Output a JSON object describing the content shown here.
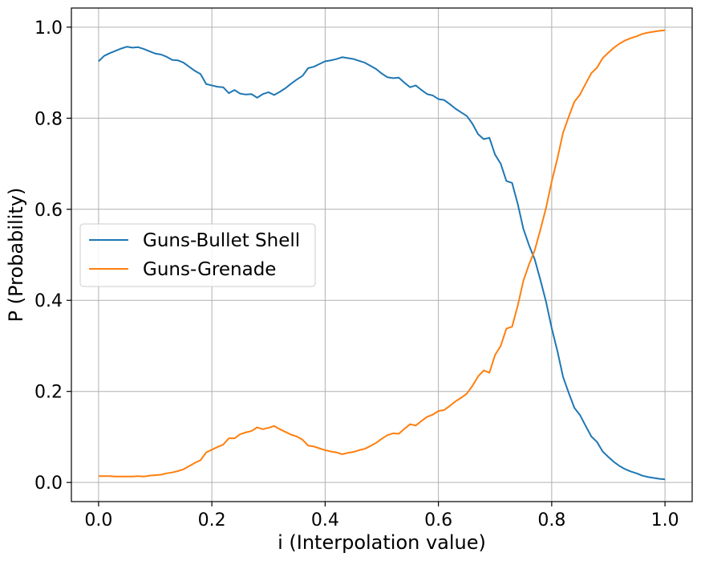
{
  "chart_data": {
    "type": "line",
    "title": "",
    "xlabel": "i (Interpolation value)",
    "ylabel": "P (Probability)",
    "xlim": [
      -0.048,
      1.048
    ],
    "ylim": [
      -0.042,
      1.042
    ],
    "xticks": [
      0.0,
      0.2,
      0.4,
      0.6,
      0.8,
      1.0
    ],
    "xtick_labels": [
      "0.0",
      "0.2",
      "0.4",
      "0.6",
      "0.8",
      "1.0"
    ],
    "yticks": [
      0.0,
      0.2,
      0.4,
      0.6,
      0.8,
      1.0
    ],
    "ytick_labels": [
      "0.0",
      "0.2",
      "0.4",
      "0.6",
      "0.8",
      "1.0"
    ],
    "grid": true,
    "legend_position": "center-left",
    "x": [
      0.0,
      0.01,
      0.02,
      0.03,
      0.04,
      0.05,
      0.06,
      0.07,
      0.08,
      0.09,
      0.1,
      0.11,
      0.12,
      0.13,
      0.14,
      0.15,
      0.16,
      0.17,
      0.18,
      0.19,
      0.2,
      0.21,
      0.22,
      0.23,
      0.24,
      0.25,
      0.26,
      0.27,
      0.28,
      0.29,
      0.3,
      0.31,
      0.32,
      0.33,
      0.34,
      0.35,
      0.36,
      0.37,
      0.38,
      0.39,
      0.4,
      0.41,
      0.42,
      0.43,
      0.44,
      0.45,
      0.46,
      0.47,
      0.48,
      0.49,
      0.5,
      0.51,
      0.52,
      0.53,
      0.54,
      0.55,
      0.56,
      0.57,
      0.58,
      0.59,
      0.6,
      0.61,
      0.62,
      0.63,
      0.64,
      0.65,
      0.66,
      0.67,
      0.68,
      0.69,
      0.7,
      0.71,
      0.72,
      0.73,
      0.74,
      0.75,
      0.76,
      0.77,
      0.78,
      0.79,
      0.8,
      0.81,
      0.82,
      0.83,
      0.84,
      0.85,
      0.86,
      0.87,
      0.88,
      0.89,
      0.9,
      0.91,
      0.92,
      0.93,
      0.94,
      0.95,
      0.96,
      0.97,
      0.98,
      0.99,
      1.0
    ],
    "series": [
      {
        "name": "Guns-Bullet Shell",
        "color": "#1f77b4",
        "values": [
          0.925,
          0.937,
          0.943,
          0.948,
          0.953,
          0.957,
          0.955,
          0.956,
          0.952,
          0.947,
          0.942,
          0.94,
          0.935,
          0.928,
          0.927,
          0.922,
          0.913,
          0.904,
          0.897,
          0.875,
          0.872,
          0.869,
          0.868,
          0.855,
          0.862,
          0.854,
          0.852,
          0.853,
          0.845,
          0.853,
          0.857,
          0.851,
          0.858,
          0.866,
          0.876,
          0.885,
          0.893,
          0.91,
          0.913,
          0.919,
          0.925,
          0.927,
          0.93,
          0.934,
          0.932,
          0.93,
          0.926,
          0.922,
          0.915,
          0.908,
          0.898,
          0.89,
          0.888,
          0.889,
          0.878,
          0.868,
          0.872,
          0.862,
          0.853,
          0.85,
          0.842,
          0.84,
          0.831,
          0.821,
          0.813,
          0.805,
          0.788,
          0.765,
          0.754,
          0.757,
          0.72,
          0.7,
          0.662,
          0.658,
          0.612,
          0.557,
          0.521,
          0.49,
          0.445,
          0.397,
          0.339,
          0.289,
          0.232,
          0.197,
          0.164,
          0.148,
          0.124,
          0.101,
          0.089,
          0.068,
          0.056,
          0.045,
          0.036,
          0.029,
          0.024,
          0.02,
          0.015,
          0.012,
          0.01,
          0.008,
          0.007
        ]
      },
      {
        "name": "Guns-Grenade",
        "color": "#ff7f0e",
        "values": [
          0.014,
          0.014,
          0.014,
          0.013,
          0.013,
          0.013,
          0.013,
          0.014,
          0.013,
          0.015,
          0.016,
          0.017,
          0.02,
          0.022,
          0.025,
          0.029,
          0.036,
          0.043,
          0.049,
          0.066,
          0.072,
          0.078,
          0.083,
          0.097,
          0.097,
          0.106,
          0.11,
          0.113,
          0.121,
          0.117,
          0.12,
          0.124,
          0.117,
          0.111,
          0.105,
          0.101,
          0.094,
          0.081,
          0.079,
          0.075,
          0.071,
          0.068,
          0.066,
          0.062,
          0.065,
          0.067,
          0.071,
          0.074,
          0.08,
          0.087,
          0.096,
          0.104,
          0.108,
          0.107,
          0.118,
          0.128,
          0.125,
          0.135,
          0.144,
          0.149,
          0.157,
          0.159,
          0.168,
          0.178,
          0.186,
          0.195,
          0.212,
          0.233,
          0.246,
          0.241,
          0.28,
          0.3,
          0.338,
          0.342,
          0.388,
          0.443,
          0.479,
          0.51,
          0.555,
          0.603,
          0.661,
          0.711,
          0.768,
          0.803,
          0.836,
          0.852,
          0.876,
          0.899,
          0.911,
          0.932,
          0.944,
          0.955,
          0.964,
          0.971,
          0.976,
          0.98,
          0.985,
          0.988,
          0.99,
          0.992,
          0.993
        ]
      }
    ]
  }
}
